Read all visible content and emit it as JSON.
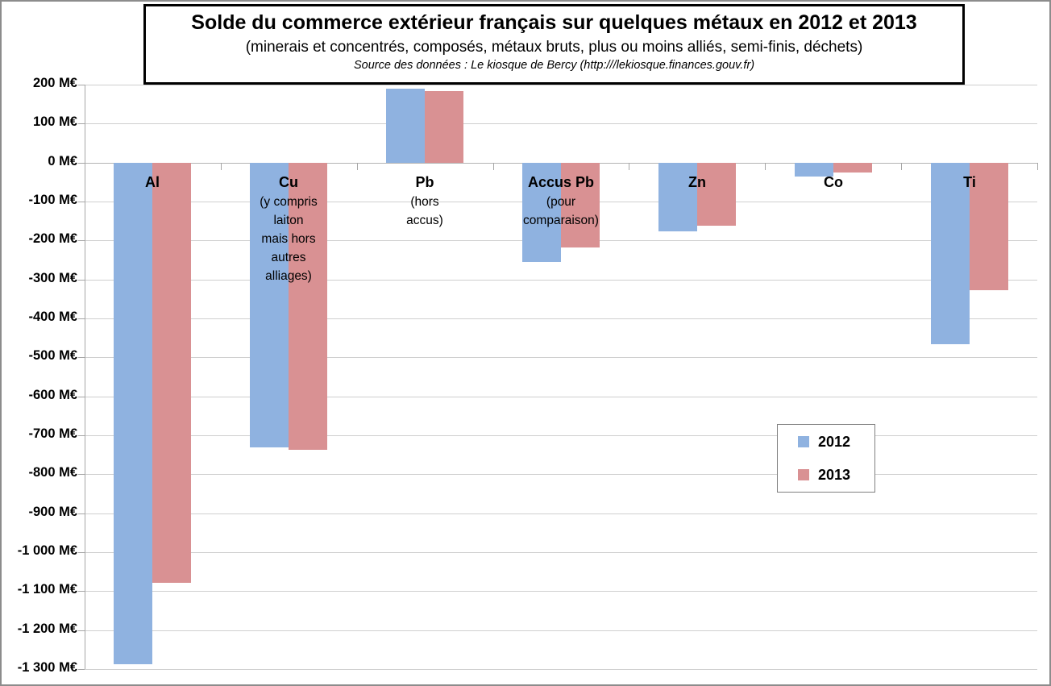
{
  "title": "Solde du commerce extérieur français sur quelques métaux en 2012 et 2013",
  "subtitle": "(minerais et concentrés, composés, métaux bruts, plus ou moins alliés, semi-finis, déchets)",
  "source": "Source des données : Le kiosque de Bercy (http:///lekiosque.finances.gouv.fr)",
  "colors": {
    "series_2012": "#8fb2e0",
    "series_2013": "#d99193",
    "gridline": "#cfcfcf",
    "axis": "#a6a6a6"
  },
  "chart_data": {
    "type": "bar",
    "title": "Solde du commerce extérieur français sur quelques métaux en 2012 et 2013",
    "subtitle": "(minerais et concentrés, composés, métaux bruts, plus ou moins alliés, semi-finis, déchets)",
    "source": "Source des données : Le kiosque de Bercy (http:///lekiosque.finances.gouv.fr)",
    "xlabel": "",
    "ylabel": "M€",
    "ylim": [
      -1300,
      200
    ],
    "y_tick_step": 100,
    "grid": true,
    "legend_position": "center-right",
    "categories": [
      {
        "label": "Al",
        "note_lines": []
      },
      {
        "label": "Cu",
        "note_lines": [
          "(y compris",
          "laiton",
          "mais hors",
          "autres",
          "alliages)"
        ]
      },
      {
        "label": "Pb",
        "note_lines": [
          "(hors",
          "accus)"
        ]
      },
      {
        "label": "Accus Pb",
        "note_lines": [
          "(pour",
          "comparaison)"
        ]
      },
      {
        "label": "Zn",
        "note_lines": []
      },
      {
        "label": "Co",
        "note_lines": []
      },
      {
        "label": "Ti",
        "note_lines": []
      }
    ],
    "series": [
      {
        "name": "2012",
        "color": "#8fb2e0",
        "values": [
          -1287,
          -731,
          190,
          -255,
          -175,
          -35,
          -466
        ]
      },
      {
        "name": "2013",
        "color": "#d99193",
        "values": [
          -1078,
          -737,
          184,
          -218,
          -161,
          -24,
          -326
        ]
      }
    ],
    "y_tick_labels": [
      "200 M€",
      "100 M€",
      "0 M€",
      "-100 M€",
      "-200 M€",
      "-300 M€",
      "-400 M€",
      "-500 M€",
      "-600 M€",
      "-700 M€",
      "-800 M€",
      "-900 M€",
      "-1 000 M€",
      "-1 100 M€",
      "-1 200 M€",
      "-1 300 M€"
    ]
  }
}
